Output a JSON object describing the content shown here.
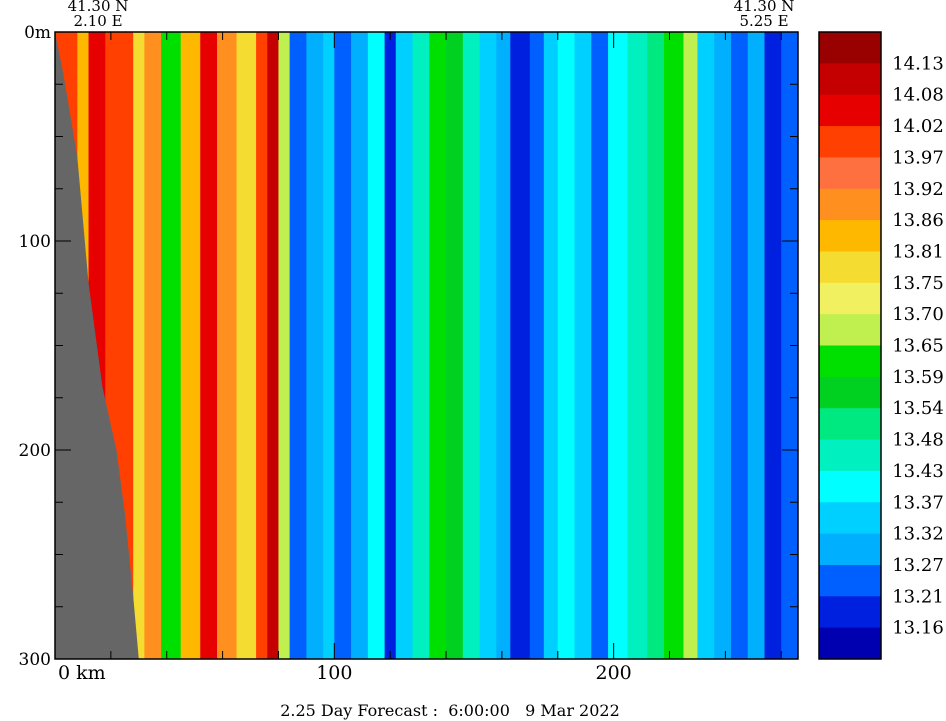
{
  "chart_data": {
    "type": "heatmap",
    "title": "",
    "xlabel": "",
    "ylabel": "",
    "x_unit_label": "km",
    "depth_unit_label": "m",
    "xlim": [
      0,
      266
    ],
    "ylim": [
      0,
      300
    ],
    "x_ticks": [
      0,
      100,
      200
    ],
    "x_tick_labels": [
      "0 km",
      "100",
      "200"
    ],
    "y_ticks": [
      0,
      100,
      200,
      300
    ],
    "y_tick_labels": [
      "0m",
      "100",
      "200",
      "300"
    ],
    "start_point": {
      "lat": "41.30 N",
      "lon": "2.10 E"
    },
    "end_point": {
      "lat": "41.30 N",
      "lon": "5.25 E"
    },
    "forecast_label": "2.25 Day Forecast :  6:00:00   9 Mar 2022",
    "legend": {
      "placement": "right",
      "labels": [
        "14.13",
        "14.08",
        "14.02",
        "13.97",
        "13.92",
        "13.86",
        "13.81",
        "13.75",
        "13.70",
        "13.65",
        "13.59",
        "13.54",
        "13.48",
        "13.43",
        "13.37",
        "13.32",
        "13.27",
        "13.21",
        "13.16"
      ],
      "colors": [
        "#990000",
        "#c40000",
        "#e60000",
        "#ff4000",
        "#ff7040",
        "#ff9020",
        "#ffb800",
        "#f5dc30",
        "#f0f060",
        "#c0f050",
        "#00e000",
        "#00d020",
        "#00e880",
        "#00f0c0",
        "#00ffff",
        "#00d0ff",
        "#00b0ff",
        "#0060ff",
        "#0020e0",
        "#0000b0"
      ]
    },
    "land_color": "#666666",
    "bathymetry": {
      "x": [
        0,
        3,
        8,
        12,
        17,
        22,
        25,
        28,
        30
      ],
      "depth": [
        0,
        20,
        60,
        120,
        170,
        200,
        230,
        270,
        300
      ]
    },
    "columns": [
      {
        "x": 0,
        "v": 13.97
      },
      {
        "x": 8,
        "v": 13.81
      },
      {
        "x": 12,
        "v": 14.02
      },
      {
        "x": 18,
        "v": 13.97
      },
      {
        "x": 28,
        "v": 13.75
      },
      {
        "x": 32,
        "v": 13.86
      },
      {
        "x": 38,
        "v": 13.59
      },
      {
        "x": 45,
        "v": 13.81
      },
      {
        "x": 52,
        "v": 14.05
      },
      {
        "x": 58,
        "v": 13.86
      },
      {
        "x": 65,
        "v": 13.75
      },
      {
        "x": 72,
        "v": 13.97
      },
      {
        "x": 76,
        "v": 14.08
      },
      {
        "x": 80,
        "v": 13.65
      },
      {
        "x": 84,
        "v": 13.21
      },
      {
        "x": 90,
        "v": 13.27
      },
      {
        "x": 96,
        "v": 13.32
      },
      {
        "x": 100,
        "v": 13.21
      },
      {
        "x": 106,
        "v": 13.27
      },
      {
        "x": 112,
        "v": 13.37
      },
      {
        "x": 118,
        "v": 13.16
      },
      {
        "x": 122,
        "v": 13.32
      },
      {
        "x": 128,
        "v": 13.43
      },
      {
        "x": 134,
        "v": 13.59
      },
      {
        "x": 140,
        "v": 13.54
      },
      {
        "x": 146,
        "v": 13.43
      },
      {
        "x": 152,
        "v": 13.32
      },
      {
        "x": 158,
        "v": 13.27
      },
      {
        "x": 163,
        "v": 13.16
      },
      {
        "x": 170,
        "v": 13.21
      },
      {
        "x": 175,
        "v": 13.32
      },
      {
        "x": 180,
        "v": 13.37
      },
      {
        "x": 186,
        "v": 13.32
      },
      {
        "x": 192,
        "v": 13.21
      },
      {
        "x": 198,
        "v": 13.37
      },
      {
        "x": 205,
        "v": 13.43
      },
      {
        "x": 212,
        "v": 13.48
      },
      {
        "x": 218,
        "v": 13.59
      },
      {
        "x": 225,
        "v": 13.65
      },
      {
        "x": 230,
        "v": 13.32
      },
      {
        "x": 236,
        "v": 13.27
      },
      {
        "x": 242,
        "v": 13.21
      },
      {
        "x": 248,
        "v": 13.27
      },
      {
        "x": 254,
        "v": 13.16
      },
      {
        "x": 260,
        "v": 13.21
      },
      {
        "x": 266,
        "v": 13.16
      }
    ]
  }
}
